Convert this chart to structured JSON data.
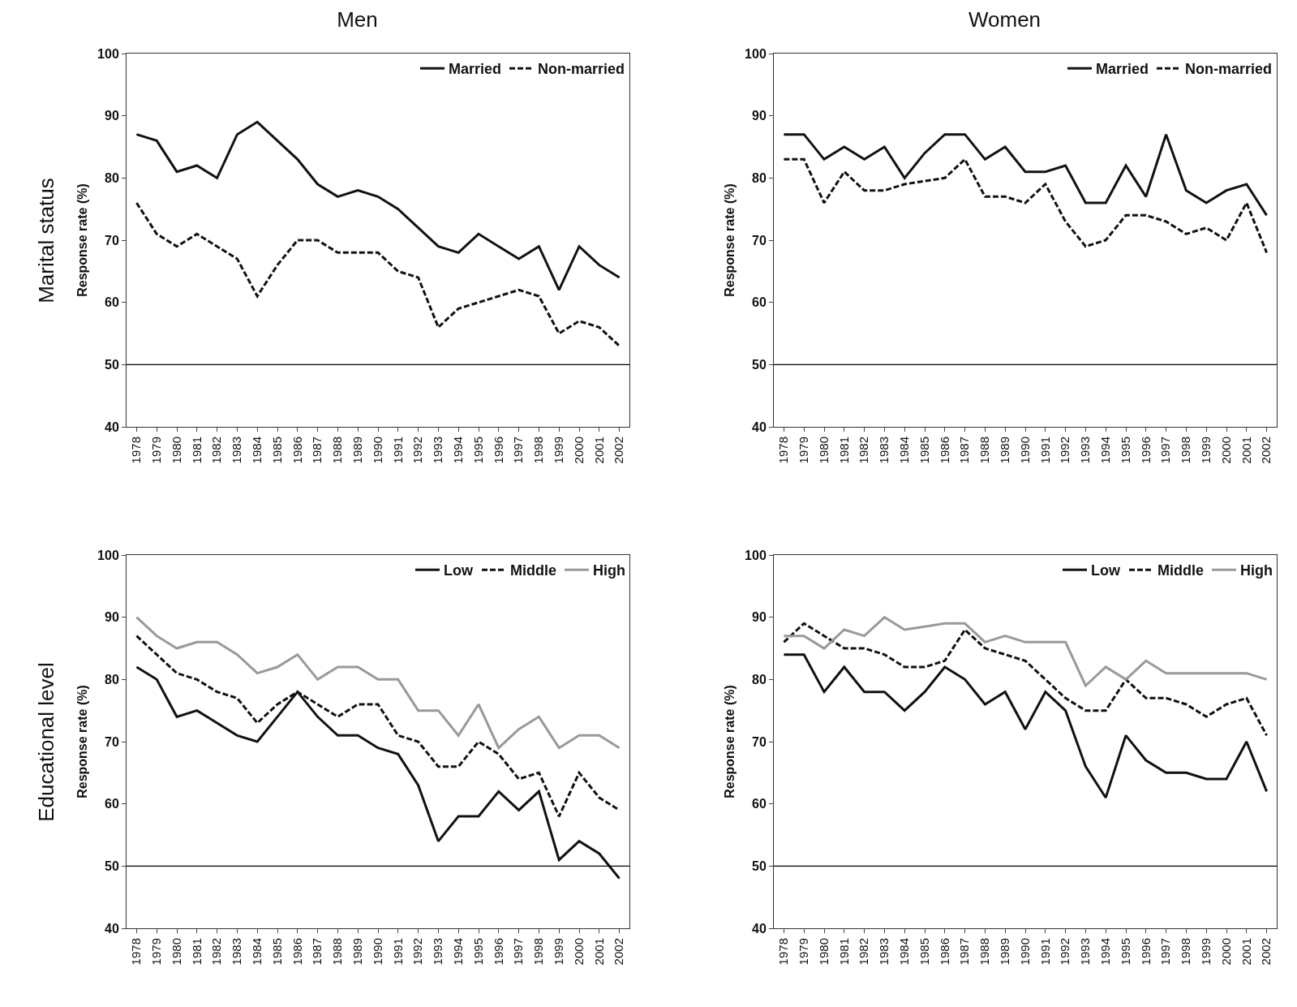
{
  "chart_data": [
    {
      "type": "line",
      "title": "Men",
      "ylabel": "Response rate (%)",
      "annotations": [
        "Marital status"
      ],
      "categories": [
        "1978",
        "1979",
        "1980",
        "1981",
        "1982",
        "1983",
        "1984",
        "1985",
        "1986",
        "1987",
        "1988",
        "1989",
        "1990",
        "1991",
        "1992",
        "1993",
        "1994",
        "1995",
        "1996",
        "1997",
        "1998",
        "1999",
        "2000",
        "2001",
        "2002"
      ],
      "ylim": [
        40,
        100
      ],
      "yticks": [
        40,
        50,
        60,
        70,
        80,
        90,
        100
      ],
      "grid": false,
      "legend": "top right",
      "ref_lines": [
        {
          "axis": "y",
          "value": 50
        }
      ],
      "series": [
        {
          "name": "Married",
          "color": "#111111",
          "line_style": "solid",
          "values": [
            87,
            86,
            81,
            82,
            80,
            87,
            89,
            86,
            83,
            79,
            77,
            78,
            77,
            75,
            72,
            69,
            68,
            71,
            69,
            67,
            69,
            62,
            69,
            66,
            64
          ]
        },
        {
          "name": "Non-married",
          "color": "#111111",
          "line_style": "dashed",
          "values": [
            76,
            71,
            69,
            71,
            69,
            67,
            61,
            66,
            70,
            70,
            68,
            68,
            68,
            65,
            64,
            56,
            59,
            60,
            61,
            62,
            61,
            55,
            57,
            56,
            53
          ]
        }
      ]
    },
    {
      "type": "line",
      "title": "Women",
      "ylabel": "Response rate (%)",
      "categories": [
        "1978",
        "1979",
        "1980",
        "1981",
        "1982",
        "1983",
        "1984",
        "1985",
        "1986",
        "1987",
        "1988",
        "1989",
        "1990",
        "1991",
        "1992",
        "1993",
        "1994",
        "1995",
        "1996",
        "1997",
        "1998",
        "1999",
        "2000",
        "2001",
        "2002"
      ],
      "ylim": [
        40,
        100
      ],
      "yticks": [
        40,
        50,
        60,
        70,
        80,
        90,
        100
      ],
      "grid": false,
      "legend": "top right",
      "ref_lines": [
        {
          "axis": "y",
          "value": 50
        }
      ],
      "series": [
        {
          "name": "Married",
          "color": "#111111",
          "line_style": "solid",
          "values": [
            87,
            87,
            83,
            85,
            83,
            85,
            80,
            84,
            87,
            87,
            83,
            85,
            81,
            81,
            82,
            76,
            76,
            82,
            77,
            87,
            78,
            76,
            78,
            79,
            74
          ]
        },
        {
          "name": "Non-married",
          "color": "#111111",
          "line_style": "dashed",
          "values": [
            83,
            83,
            76,
            81,
            78,
            78,
            79,
            79.5,
            80,
            83,
            77,
            77,
            76,
            79,
            73,
            69,
            70,
            74,
            74,
            73,
            71,
            72,
            70,
            76,
            68
          ]
        }
      ]
    },
    {
      "type": "line",
      "ylabel": "Response rate (%)",
      "annotations": [
        "Educational level"
      ],
      "categories": [
        "1978",
        "1979",
        "1980",
        "1981",
        "1982",
        "1983",
        "1984",
        "1985",
        "1986",
        "1987",
        "1988",
        "1989",
        "1990",
        "1991",
        "1992",
        "1993",
        "1994",
        "1995",
        "1996",
        "1997",
        "1998",
        "1999",
        "2000",
        "2001",
        "2002"
      ],
      "ylim": [
        40,
        100
      ],
      "yticks": [
        40,
        50,
        60,
        70,
        80,
        90,
        100
      ],
      "grid": false,
      "legend": "top right",
      "ref_lines": [
        {
          "axis": "y",
          "value": 50
        }
      ],
      "series": [
        {
          "name": "Low",
          "color": "#111111",
          "line_style": "solid",
          "values": [
            82,
            80,
            74,
            75,
            73,
            71,
            70,
            74,
            78,
            74,
            71,
            71,
            69,
            68,
            63,
            54,
            58,
            58,
            62,
            59,
            62,
            51,
            54,
            52,
            48
          ]
        },
        {
          "name": "Middle",
          "color": "#111111",
          "line_style": "dashed",
          "values": [
            87,
            84,
            81,
            80,
            78,
            77,
            73,
            76,
            78,
            76,
            74,
            76,
            76,
            71,
            70,
            66,
            66,
            70,
            68,
            64,
            65,
            58,
            65,
            61,
            59
          ]
        },
        {
          "name": "High",
          "color": "#999999",
          "line_style": "solid",
          "values": [
            90,
            87,
            85,
            86,
            86,
            84,
            81,
            82,
            84,
            80,
            82,
            82,
            80,
            80,
            75,
            75,
            71,
            76,
            69,
            72,
            74,
            69,
            71,
            71,
            69
          ]
        }
      ]
    },
    {
      "type": "line",
      "ylabel": "Response rate (%)",
      "categories": [
        "1978",
        "1979",
        "1980",
        "1981",
        "1982",
        "1983",
        "1984",
        "1985",
        "1986",
        "1987",
        "1988",
        "1989",
        "1990",
        "1991",
        "1992",
        "1993",
        "1994",
        "1995",
        "1996",
        "1997",
        "1998",
        "1999",
        "2000",
        "2001",
        "2002"
      ],
      "ylim": [
        40,
        100
      ],
      "yticks": [
        40,
        50,
        60,
        70,
        80,
        90,
        100
      ],
      "grid": false,
      "legend": "top right",
      "ref_lines": [
        {
          "axis": "y",
          "value": 50
        }
      ],
      "series": [
        {
          "name": "Low",
          "color": "#111111",
          "line_style": "solid",
          "values": [
            84,
            84,
            78,
            82,
            78,
            78,
            75,
            78,
            82,
            80,
            76,
            78,
            72,
            78,
            75,
            66,
            61,
            71,
            67,
            65,
            65,
            64,
            64,
            70,
            62
          ]
        },
        {
          "name": "Middle",
          "color": "#111111",
          "line_style": "dashed",
          "values": [
            86,
            89,
            87,
            85,
            85,
            84,
            82,
            82,
            83,
            88,
            85,
            84,
            83,
            80,
            77,
            75,
            75,
            80,
            77,
            77,
            76,
            74,
            76,
            77,
            71
          ]
        },
        {
          "name": "High",
          "color": "#999999",
          "line_style": "solid",
          "values": [
            87,
            87,
            85,
            88,
            87,
            90,
            88,
            88.5,
            89,
            89,
            86,
            87,
            86,
            86,
            86,
            79,
            82,
            80,
            83,
            81,
            81,
            81,
            81,
            81,
            80
          ]
        }
      ]
    }
  ]
}
